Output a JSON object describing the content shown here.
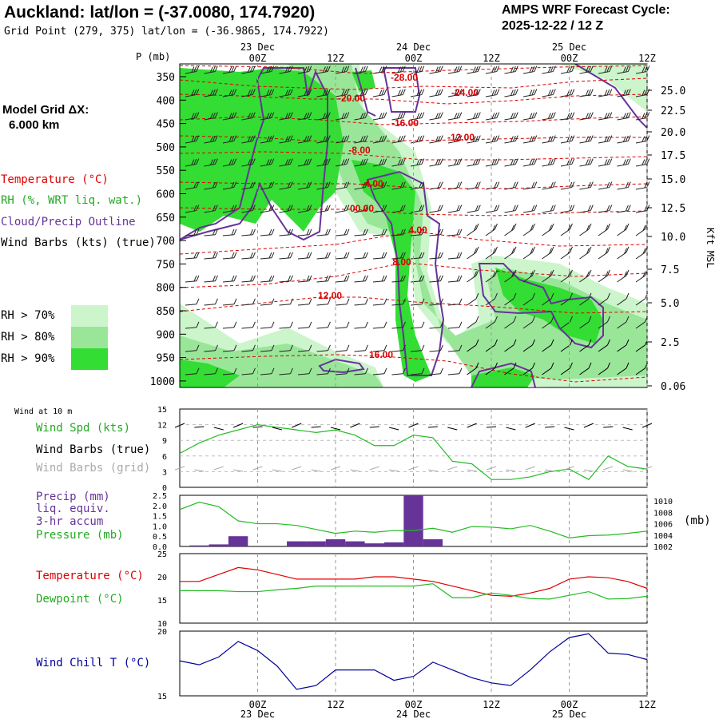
{
  "header": {
    "title": "Auckland:  lat/lon = (-37.0080, 174.7920)",
    "grid_point": "Grid Point (279, 375) lat/lon = (-36.9865, 174.7922)",
    "cycle_line1": "AMPS WRF Forecast Cycle:",
    "cycle_line2": "2025-12-22 / 12  Z"
  },
  "model_grid": {
    "label": "Model Grid ΔX:",
    "value": "6.000 km"
  },
  "time_axis": {
    "ticks": [
      "00Z",
      "12Z",
      "00Z",
      "12Z",
      "00Z",
      "12Z"
    ],
    "dates": [
      "23 Dec",
      "24 Dec",
      "25 Dec"
    ]
  },
  "legend": {
    "temperature": "Temperature (°C)",
    "rh": "RH (%, WRT liq. wat.)",
    "cloud": "Cloud/Precip Outline",
    "wind": "Wind Barbs (kts) (true)",
    "rh70": "RH > 70%",
    "rh80": "RH > 80%",
    "rh90": "RH > 90%",
    "rh_colors": [
      "#ccf5cc",
      "#99e699",
      "#33dd33"
    ],
    "temp_color": "#dd0000",
    "cloud_color": "#663399",
    "p_axis_label": "P (mb)",
    "kft_label": "Kft MSL"
  },
  "upper_panel": {
    "pressure_levels": [
      "350",
      "400",
      "450",
      "500",
      "550",
      "600",
      "650",
      "700",
      "750",
      "800",
      "850",
      "900",
      "950",
      "1000"
    ],
    "kft_labels": [
      "25.0",
      "22.5",
      "20.0",
      "17.5",
      "15.0",
      "12.5",
      "10.0",
      "7.5",
      "5.0",
      "2.5",
      "0.06"
    ],
    "temp_labels": [
      "-28.00",
      "-24.00",
      "-20.00",
      "-16.00",
      "-12.00",
      "-8.00",
      "-4.00",
      "00.00",
      "4.00",
      "8.00",
      "12.00",
      "16.00"
    ]
  },
  "wind_panel": {
    "title": "Wind at 10 m",
    "spd_label": "Wind Spd (kts)",
    "true_label": "Wind Barbs (true)",
    "grid_label": "Wind Barbs (grid)",
    "y_ticks": [
      "15",
      "12",
      "9",
      "6",
      "3",
      "0"
    ]
  },
  "precip_panel": {
    "precip_label1": "Precip (mm)",
    "precip_label2": "liq. equiv.",
    "precip_label3": "3-hr accum",
    "pressure_label": "Pressure (mb)",
    "left_ticks": [
      "2.5",
      "2.0",
      "1.5",
      "1.0",
      "0.5",
      "0.0"
    ],
    "right_ticks": [
      "1010",
      "1008",
      "1006",
      "1004",
      "1002"
    ],
    "mb_label": "(mb)"
  },
  "temp_panel": {
    "temp_label": "Temperature (°C)",
    "dew_label": "Dewpoint (°C)",
    "y_ticks": [
      "25",
      "20",
      "15",
      "10"
    ]
  },
  "chill_panel": {
    "label": "Wind Chill T (°C)",
    "y_ticks": [
      "20",
      "15"
    ]
  },
  "chart_data": [
    {
      "type": "line",
      "panel": "wind",
      "x": [
        -12,
        -9,
        -6,
        -3,
        0,
        3,
        6,
        9,
        12,
        15,
        18,
        21,
        24,
        27,
        30,
        33,
        36,
        39,
        42,
        45,
        48,
        51,
        54,
        57,
        60
      ],
      "series": [
        {
          "name": "Wind Spd (kts)",
          "color": "#22bb22",
          "values": [
            6.5,
            8.5,
            10,
            11,
            12,
            11.5,
            11,
            10.5,
            11,
            10,
            8,
            8,
            10,
            9.5,
            5,
            4.5,
            1.5,
            1.5,
            2,
            3,
            3.5,
            1.5,
            6,
            4,
            3.5
          ]
        }
      ],
      "ylim": [
        0,
        15
      ]
    },
    {
      "type": "bar",
      "panel": "precip",
      "x": [
        -12,
        -9,
        -6,
        -3,
        0,
        3,
        6,
        9,
        12,
        15,
        18,
        21,
        24,
        27,
        30,
        33,
        36,
        39,
        42,
        45,
        48,
        51,
        54,
        57,
        60
      ],
      "series": [
        {
          "name": "Precip (mm)",
          "color": "#663399",
          "values": [
            0,
            0.05,
            0.1,
            0.5,
            0,
            0,
            0.25,
            0.25,
            0.35,
            0.25,
            0.15,
            0.2,
            2.5,
            0.35,
            0,
            0,
            0,
            0,
            0,
            0,
            0,
            0,
            0,
            0,
            0
          ]
        },
        {
          "name": "Pressure (mb)",
          "color": "#22bb22",
          "values": [
            1008.5,
            1009.8,
            1009,
            1006.5,
            1006,
            1006,
            1005.7,
            1005,
            1004.3,
            1004.7,
            1004.5,
            1004.8,
            1004.8,
            1005.2,
            1004.5,
            1005.5,
            1005.4,
            1005.1,
            1005.7,
            1004.7,
            1003.5,
            1003.9,
            1004,
            1004.3,
            1004.7
          ]
        }
      ],
      "ylim": [
        0,
        2.5
      ],
      "y2lim": [
        1002,
        1011
      ]
    },
    {
      "type": "line",
      "panel": "temperature",
      "x": [
        -12,
        -9,
        -6,
        -3,
        0,
        3,
        6,
        9,
        12,
        15,
        18,
        21,
        24,
        27,
        30,
        33,
        36,
        39,
        42,
        45,
        48,
        51,
        54,
        57,
        60
      ],
      "series": [
        {
          "name": "Temperature (°C)",
          "color": "#dd0000",
          "values": [
            19,
            19,
            20.5,
            22,
            21.5,
            20.5,
            19.5,
            19.5,
            19.5,
            19.5,
            20,
            20,
            19.5,
            19,
            18,
            17,
            16,
            15.8,
            16.5,
            17.5,
            19.5,
            20,
            19.8,
            19,
            17.5
          ]
        },
        {
          "name": "Dewpoint (°C)",
          "color": "#22bb22",
          "values": [
            17,
            17,
            17,
            16.8,
            16.8,
            17.2,
            17.5,
            18,
            18,
            18,
            18,
            18,
            18,
            18.5,
            15.5,
            15.5,
            16.5,
            16,
            15.3,
            15.2,
            16,
            16.8,
            15.2,
            15.3,
            15.8
          ]
        }
      ],
      "ylim": [
        10,
        25
      ]
    },
    {
      "type": "line",
      "panel": "windchill",
      "x": [
        -12,
        -9,
        -6,
        -3,
        0,
        3,
        6,
        9,
        12,
        15,
        18,
        21,
        24,
        27,
        30,
        33,
        36,
        39,
        42,
        45,
        48,
        51,
        54,
        57,
        60
      ],
      "series": [
        {
          "name": "Wind Chill T (°C)",
          "color": "#000099",
          "values": [
            17.7,
            17.4,
            18,
            19.2,
            18.5,
            17.3,
            15.5,
            15.8,
            17,
            17,
            17,
            16.2,
            16.5,
            17.6,
            17,
            16.4,
            16,
            15.8,
            17,
            18.4,
            19.5,
            19.8,
            18.3,
            18.2,
            17.8
          ]
        }
      ],
      "ylim": [
        15,
        20
      ]
    }
  ]
}
